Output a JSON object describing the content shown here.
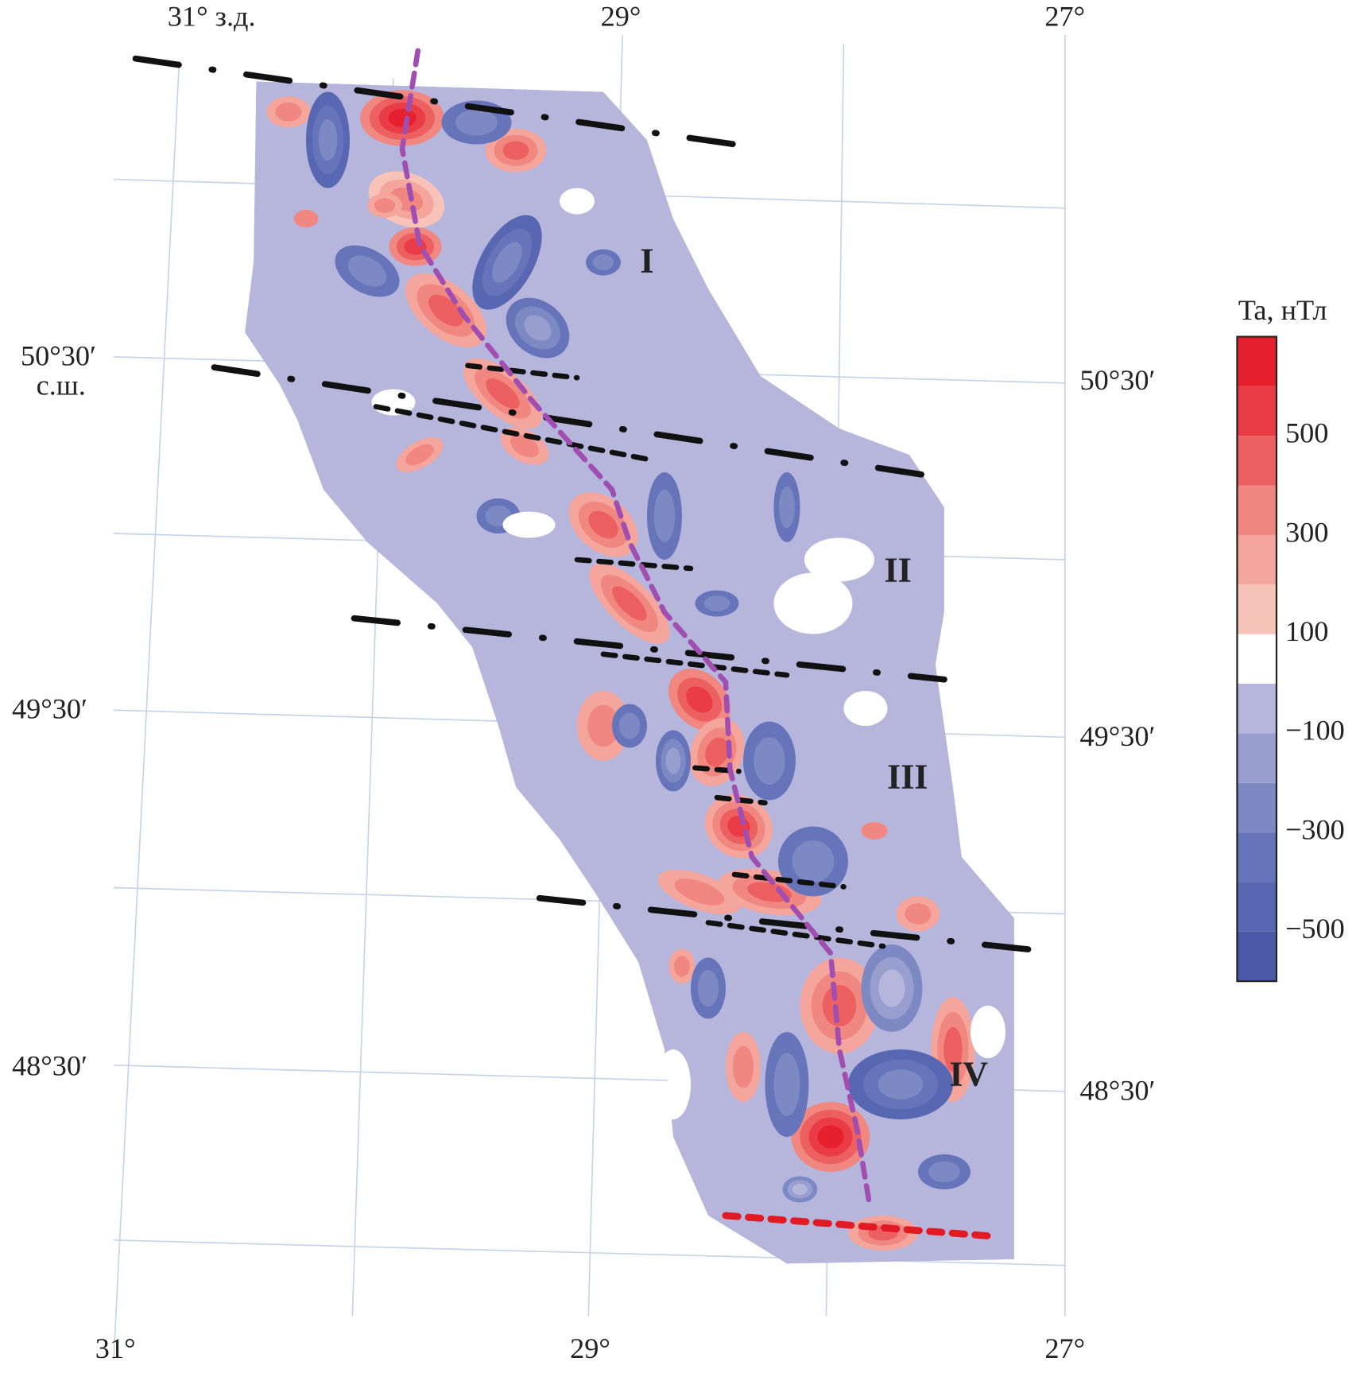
{
  "map": {
    "top_labels": [
      "31° з.д.",
      "29°",
      "27°"
    ],
    "left_labels": [
      "50°30′",
      "с.ш.",
      "49°30′",
      "48°30′"
    ],
    "right_labels": [
      "50°30′",
      "49°30′",
      "48°30′"
    ],
    "bottom_labels": [
      "31°",
      "29°",
      "27°"
    ],
    "region_labels": [
      "I",
      "II",
      "III",
      "IV"
    ]
  },
  "colorbar": {
    "title": "Ta, нТл",
    "lim": [
      -600,
      700
    ],
    "colors": [
      "#4a5aa8",
      "#5767b1",
      "#6675b9",
      "#7c89c3",
      "#989fcf",
      "#b6b6dc",
      "#ffffff",
      "#f8c4ba",
      "#f5a69c",
      "#f08780",
      "#ec6062",
      "#e93c46",
      "#e6202e"
    ],
    "ticks": [
      500,
      300,
      100,
      {
        "value": -100,
        "label": "−100"
      },
      {
        "value": -300,
        "label": "−300"
      },
      {
        "value": -500,
        "label": "−500"
      }
    ]
  }
}
